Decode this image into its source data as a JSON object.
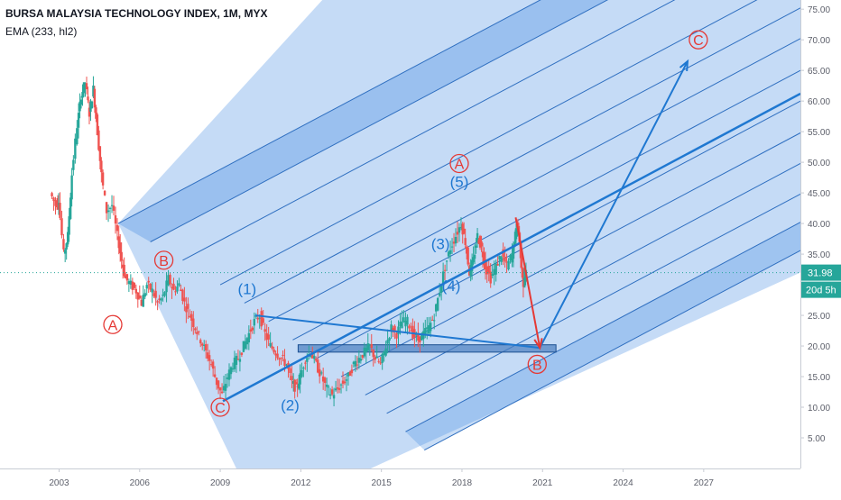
{
  "header": {
    "title": "BURSA MALAYSIA TECHNOLOGY INDEX, 1M, MYX",
    "indicator": "EMA (233, hl2)"
  },
  "price_box": {
    "value": "31.98",
    "countdown": "20d 5h"
  },
  "colors": {
    "up": "#26a69a",
    "down": "#ef5350",
    "wave_blue": "#1f78d1",
    "wave_red": "#e53935",
    "channel_fill": "#4a90e2",
    "price_line": "#26a69a"
  },
  "chart_data": {
    "type": "candlestick",
    "title": "BURSA MALAYSIA TECHNOLOGY INDEX, 1M, MYX",
    "xlabel": "",
    "ylabel": "",
    "x_ticks": [
      "2003",
      "2006",
      "2009",
      "2012",
      "2015",
      "2018",
      "2021",
      "2024",
      "2027"
    ],
    "y_ticks": [
      "5.00",
      "10.00",
      "15.00",
      "20.00",
      "25.00",
      "30.00",
      "35.00",
      "40.00",
      "45.00",
      "50.00",
      "55.00",
      "60.00",
      "65.00",
      "70.00",
      "75.00"
    ],
    "xlim": [
      2000.8,
      2030.6
    ],
    "ylim": [
      0.0,
      76.5
    ],
    "grid": false,
    "current_price": 31.98,
    "price_path": [
      [
        2002.7,
        45
      ],
      [
        2002.9,
        43
      ],
      [
        2003.0,
        44
      ],
      [
        2003.2,
        35
      ],
      [
        2003.35,
        38
      ],
      [
        2003.5,
        48
      ],
      [
        2003.7,
        56
      ],
      [
        2003.85,
        61
      ],
      [
        2004.0,
        63
      ],
      [
        2004.15,
        58
      ],
      [
        2004.3,
        62
      ],
      [
        2004.45,
        55
      ],
      [
        2004.6,
        48
      ],
      [
        2004.8,
        42
      ],
      [
        2005.0,
        43
      ],
      [
        2005.2,
        38
      ],
      [
        2005.35,
        34
      ],
      [
        2005.5,
        31
      ],
      [
        2005.7,
        30
      ],
      [
        2005.9,
        29
      ],
      [
        2006.1,
        27
      ],
      [
        2006.3,
        30
      ],
      [
        2006.5,
        29
      ],
      [
        2006.7,
        27
      ],
      [
        2006.9,
        28
      ],
      [
        2007.1,
        31
      ],
      [
        2007.3,
        29
      ],
      [
        2007.5,
        30
      ],
      [
        2007.7,
        27
      ],
      [
        2007.9,
        25
      ],
      [
        2008.1,
        23
      ],
      [
        2008.3,
        21
      ],
      [
        2008.5,
        19
      ],
      [
        2008.7,
        17
      ],
      [
        2008.9,
        14
      ],
      [
        2009.1,
        12
      ],
      [
        2009.3,
        15
      ],
      [
        2009.5,
        17
      ],
      [
        2009.7,
        18
      ],
      [
        2009.9,
        20
      ],
      [
        2010.1,
        22
      ],
      [
        2010.3,
        24
      ],
      [
        2010.5,
        25
      ],
      [
        2010.7,
        22
      ],
      [
        2010.9,
        20
      ],
      [
        2011.1,
        19
      ],
      [
        2011.3,
        18
      ],
      [
        2011.5,
        17
      ],
      [
        2011.7,
        14
      ],
      [
        2011.85,
        13
      ],
      [
        2012.0,
        15
      ],
      [
        2012.2,
        18
      ],
      [
        2012.4,
        19
      ],
      [
        2012.6,
        17
      ],
      [
        2012.8,
        15
      ],
      [
        2013.0,
        13
      ],
      [
        2013.2,
        12
      ],
      [
        2013.4,
        13
      ],
      [
        2013.6,
        14
      ],
      [
        2013.8,
        15
      ],
      [
        2014.0,
        17
      ],
      [
        2014.2,
        18
      ],
      [
        2014.4,
        19
      ],
      [
        2014.6,
        20
      ],
      [
        2014.8,
        18
      ],
      [
        2015.0,
        17
      ],
      [
        2015.2,
        20
      ],
      [
        2015.4,
        23
      ],
      [
        2015.6,
        22
      ],
      [
        2015.8,
        24
      ],
      [
        2016.0,
        24
      ],
      [
        2016.2,
        22
      ],
      [
        2016.4,
        21
      ],
      [
        2016.6,
        22
      ],
      [
        2016.8,
        23
      ],
      [
        2017.0,
        25
      ],
      [
        2017.2,
        29
      ],
      [
        2017.4,
        33
      ],
      [
        2017.6,
        36
      ],
      [
        2017.8,
        38
      ],
      [
        2018.0,
        40
      ],
      [
        2018.15,
        37
      ],
      [
        2018.3,
        32
      ],
      [
        2018.45,
        34
      ],
      [
        2018.6,
        38
      ],
      [
        2018.75,
        36
      ],
      [
        2018.9,
        33
      ],
      [
        2019.1,
        31
      ],
      [
        2019.3,
        33
      ],
      [
        2019.5,
        35
      ],
      [
        2019.7,
        33
      ],
      [
        2019.9,
        35
      ],
      [
        2020.0,
        38
      ],
      [
        2020.1,
        40
      ],
      [
        2020.2,
        35
      ],
      [
        2020.3,
        30
      ],
      [
        2020.4,
        31.98
      ]
    ],
    "channel_band": [
      [
        2005.2,
        40
      ],
      [
        2012.8,
        76.5
      ],
      [
        2030.6,
        76.5
      ],
      [
        2030.6,
        32
      ],
      [
        2014.6,
        0
      ],
      [
        2009.6,
        0
      ]
    ],
    "channel_lines": [
      [
        [
          2005.2,
          40
        ],
        [
          2030.6,
          99.0
        ]
      ],
      [
        [
          2006.4,
          37
        ],
        [
          2030.6,
          93.2
        ]
      ],
      [
        [
          2007.6,
          34
        ],
        [
          2030.6,
          87.4
        ]
      ],
      [
        [
          2009.0,
          30
        ],
        [
          2030.6,
          80.3
        ]
      ],
      [
        [
          2009.9,
          27
        ],
        [
          2030.6,
          75.2
        ]
      ],
      [
        [
          2010.8,
          24
        ],
        [
          2030.6,
          70.2
        ]
      ],
      [
        [
          2011.7,
          21
        ],
        [
          2030.6,
          65.0
        ]
      ],
      [
        [
          2012.6,
          18
        ],
        [
          2030.6,
          60.0
        ]
      ],
      [
        [
          2013.5,
          15
        ],
        [
          2030.6,
          54.8
        ]
      ],
      [
        [
          2014.4,
          12
        ],
        [
          2030.6,
          49.8
        ]
      ],
      [
        [
          2015.2,
          9
        ],
        [
          2030.6,
          44.8
        ]
      ],
      [
        [
          2015.9,
          6
        ],
        [
          2030.6,
          40.2
        ]
      ],
      [
        [
          2016.6,
          3
        ],
        [
          2030.6,
          35.6
        ]
      ]
    ],
    "median_line": [
      [
        2009.1,
        11.0
      ],
      [
        2030.6,
        61.2
      ]
    ],
    "handle_line": [
      [
        2010.3,
        25.0
      ],
      [
        2020.9,
        19.7
      ]
    ],
    "projection": [
      [
        2020.0,
        41.0
      ],
      [
        2020.9,
        19.7
      ],
      [
        2026.4,
        66.5
      ]
    ],
    "support_zone": {
      "x0": 2011.9,
      "x1": 2021.5,
      "y0": 19.0,
      "y1": 20.2
    },
    "wave_labels": [
      {
        "text": "(1)",
        "x": 2010.0,
        "y": 28.5,
        "color": "blue"
      },
      {
        "text": "(2)",
        "x": 2011.6,
        "y": 9.5,
        "color": "blue"
      },
      {
        "text": "(3)",
        "x": 2017.2,
        "y": 35.8,
        "color": "blue"
      },
      {
        "text": "(4)",
        "x": 2017.6,
        "y": 29.0,
        "color": "blue"
      },
      {
        "text": "(5)",
        "x": 2017.9,
        "y": 46.0,
        "color": "blue"
      }
    ],
    "circle_labels": [
      {
        "text": "A",
        "x": 2005.0,
        "y": 23.5
      },
      {
        "text": "B",
        "x": 2006.9,
        "y": 34.0
      },
      {
        "text": "C",
        "x": 2009.0,
        "y": 10.0
      },
      {
        "text": "A",
        "x": 2017.9,
        "y": 49.8
      },
      {
        "text": "B",
        "x": 2020.8,
        "y": 17.0
      },
      {
        "text": "C",
        "x": 2026.8,
        "y": 70.0
      }
    ]
  }
}
